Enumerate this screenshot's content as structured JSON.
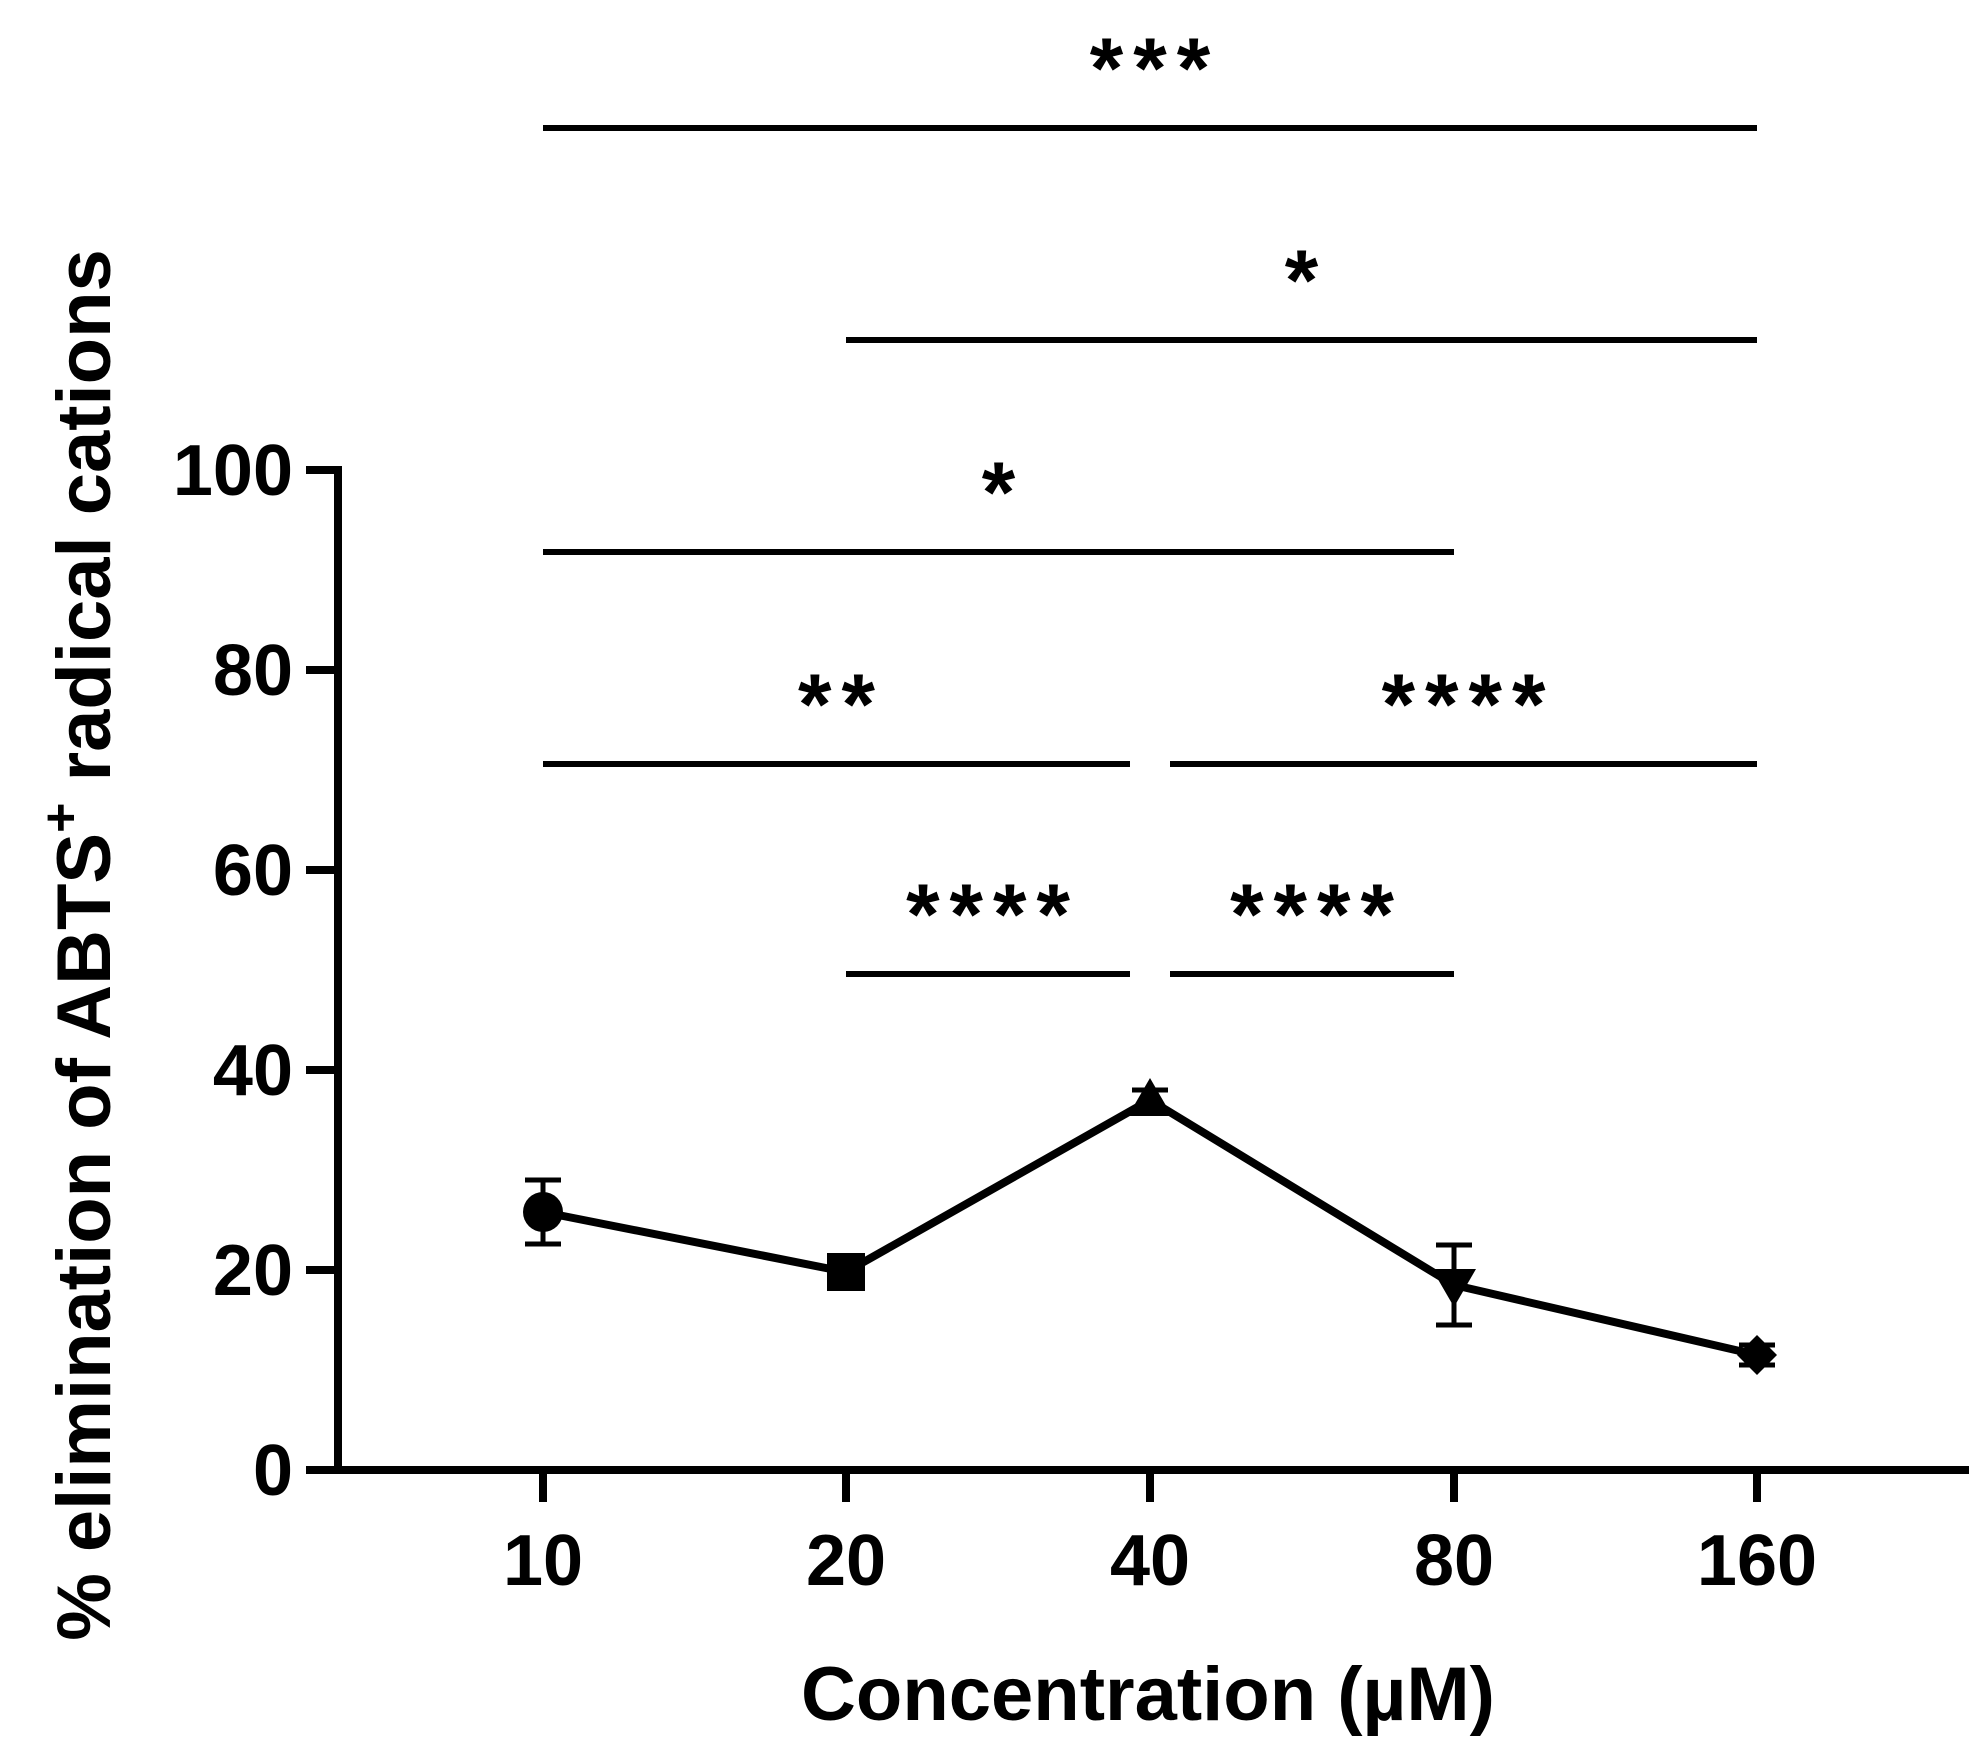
{
  "chart_data": {
    "type": "line",
    "title": "",
    "xlabel": "Concentration (µM)",
    "ylabel": "% elimination of ABTS⁺ radical cations",
    "categories": [
      "10",
      "20",
      "40",
      "80",
      "160"
    ],
    "ylim": [
      0,
      100
    ],
    "yticks": [
      0,
      20,
      40,
      60,
      80,
      100
    ],
    "series": [
      {
        "name": "ABTS",
        "values": [
          25.8,
          19.8,
          37.0,
          18.5,
          11.5
        ],
        "errors": [
          3.2,
          1.0,
          1.0,
          4.0,
          1.0
        ],
        "markers": [
          "circle",
          "square",
          "triangle-up",
          "triangle-down",
          "diamond"
        ]
      }
    ],
    "comparisons": [
      {
        "from": "10",
        "to": "160",
        "label": "***",
        "level": 1
      },
      {
        "from": "20",
        "to": "160",
        "label": "*",
        "level": 2
      },
      {
        "from": "10",
        "to": "80",
        "label": "*",
        "level": 3
      },
      {
        "from": "10",
        "to": "40",
        "label": "**",
        "level": 4
      },
      {
        "from": "40",
        "to": "160",
        "label": "****",
        "level": 4
      },
      {
        "from": "20",
        "to": "40",
        "label": "****",
        "level": 5
      },
      {
        "from": "40",
        "to": "80",
        "label": "****",
        "level": 5
      }
    ]
  }
}
